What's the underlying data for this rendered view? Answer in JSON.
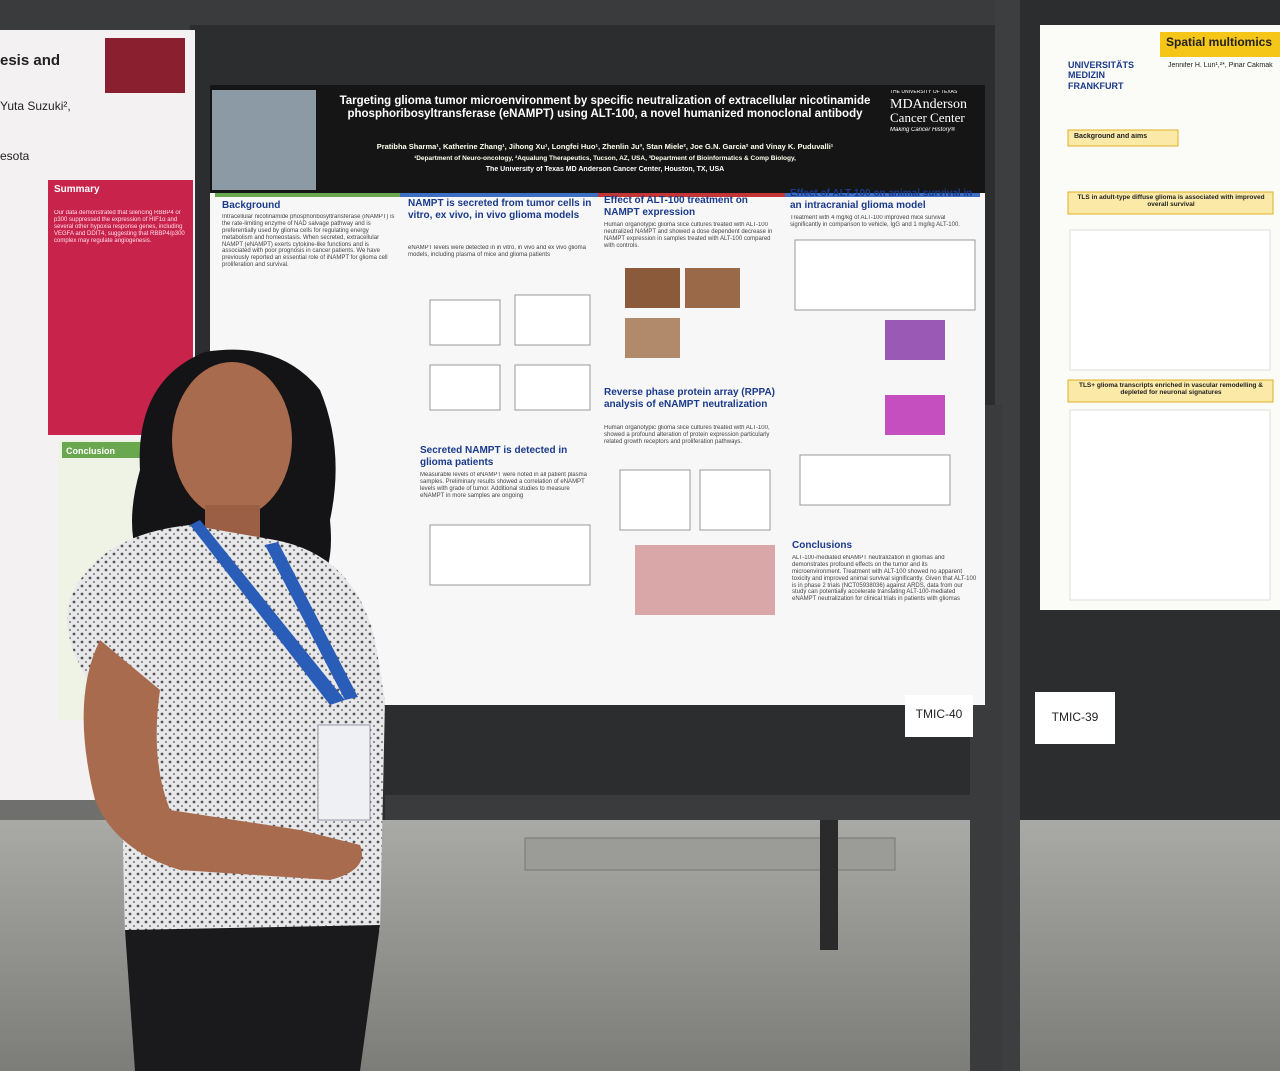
{
  "left_poster": {
    "title_fragment": "esis and",
    "author_fragment": "Yuta Suzuki²,",
    "affiliation_fragment": "esota",
    "summary_heading": "Summary",
    "summary_text": "Our data demonstrated that silencing RBBP4 or p300 suppressed the expression of HIF1α and several other hypoxia response genes, including VEGFA and DDIT4, suggesting that RBBP4/p300 complex may regulate angiogenesis.",
    "conclusion_heading": "Conclusion"
  },
  "main_poster": {
    "title": "Targeting glioma tumor microenvironment by specific neutralization of extracellular nicotinamide phosphoribosyltransferase (eNAMPT) using ALT-100, a novel humanized monoclonal antibody",
    "authors": "Pratibha Sharma¹, Katherine Zhang¹, Jihong Xu¹, Longfei Huo¹, Zhenlin Ju³, Stan Miele², Joe G.N. Garcia² and Vinay K. Puduvalli¹",
    "affiliations": "¹Department of Neuro-oncology, ²Aqualung Therapeutics, Tucson, AZ, USA, ³Department of Bioinformatics & Comp Biology,",
    "institution": "The University of Texas MD Anderson Cancer Center, Houston, TX, USA",
    "logo": {
      "top": "THE UNIVERSITY OF TEXAS",
      "name": "MDAnderson",
      "sub": "Cancer Center",
      "tagline": "Making Cancer History®"
    },
    "sections": [
      {
        "heading": "Background",
        "body": "Intracellular nicotinamide phosphoribosyltransferase (iNAMPT) is the rate-limiting enzyme of NAD salvage pathway and is preferentially used by glioma cells for regulating energy metabolism and homeostasis. When secreted, extracellular NAMPT (eNAMPT) exerts cytokine-like functions and is associated with poor prognosis in cancer patients. We have previously reported an essential role of iNAMPT for glioma cell proliferation and survival."
      },
      {
        "heading": "NAMPT is secreted from tumor cells in vitro, ex vivo, in vivo glioma models",
        "body": "eNAMPT levels were detected in in vitro, in vivo and ex vivo glioma models, including plasma of mice and glioma patients"
      },
      {
        "heading": "Secreted NAMPT is detected in glioma patients",
        "body": "Measurable levels of eNAMPT were noted in all patient plasma samples. Preliminary results showed a correlation of eNAMPT levels with grade of tumor. Additional studies to measure eNAMPT in more samples are ongoing"
      },
      {
        "heading": "Effect of ALT-100 treatment on NAMPT expression",
        "body": "Human organotypic glioma slice cultures treated with ALT-100 neutralized NAMPT and showed a dose dependent decrease in NAMPT expression in samples treated with ALT-100 compared with controls."
      },
      {
        "heading": "Reverse phase protein array (RPPA) analysis of eNAMPT neutralization",
        "body": "Human organotypic glioma slice cultures treated with ALT-100, showed a profound alteration of protein expression particularly related growth receptors and proliferation pathways."
      },
      {
        "heading": "Effect of ALT-100 on animal survival in an intracranial glioma model",
        "body": "Treatment with 4 mg/kg of ALT-100 improved mice survival significantly in comparison to vehicle, IgG and 1 mg/kg ALT-100."
      },
      {
        "heading": "Conclusions",
        "body": "ALT-100-mediated eNAMPT neutralization in gliomas and demonstrates profound effects on the tumor and its microenvironment. Treatment with ALT-100 showed no apparent toxicity and improved animal survival significantly. Given that ALT-100 is in phase 2 trials (NCT05938036) against ARDS, data from our study can potentially accelerate translating ALT-100-mediated eNAMPT neutralization for clinical trials in patients with gliomas"
      }
    ],
    "board_label": "TMIC-40"
  },
  "right_poster": {
    "title": "Spatial multiomics",
    "logo": "UNIVERSITÄTS MEDIZIN FRANKFURT",
    "authors": "Jennifer H. Lun¹,²*, Pinar Cakmak",
    "box1": "Background and aims",
    "box2": "TLS in adult-type diffuse glioma is associated with improved overall survival",
    "box3": "TLS+ glioma transcripts enriched in vascular remodelling & depleted for neuronal signatures",
    "board_label": "TMIC-39"
  }
}
